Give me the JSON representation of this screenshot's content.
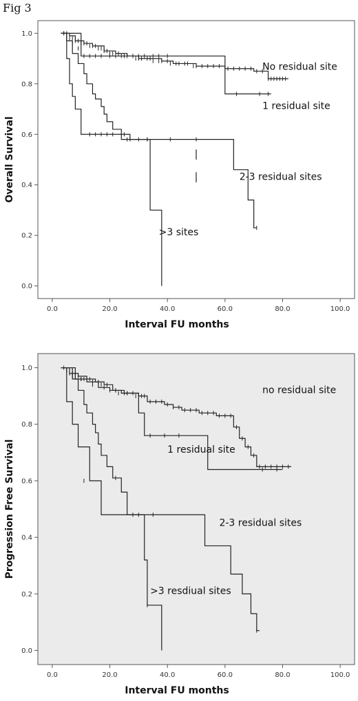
{
  "figure_label": "Fig 3",
  "chart_data": [
    {
      "type": "line",
      "chart_style": "kaplan-meier",
      "panel": "top",
      "background": "#ffffff",
      "xlabel": "Interval FU months",
      "ylabel": "Overall Survival",
      "xlim": [
        -5,
        105
      ],
      "ylim": [
        -0.05,
        1.05
      ],
      "x_ticks": [
        "0.0",
        "20.0",
        "40.0",
        "60.0",
        "80.0",
        "100.0"
      ],
      "y_ticks": [
        "0.0",
        "0.2",
        "0.4",
        "0.6",
        "0.8",
        "1.0"
      ],
      "grid": false,
      "series": [
        {
          "name": "No residual site",
          "label_at": [
            73,
            0.855
          ],
          "x": [
            3,
            6,
            8,
            11,
            14,
            18,
            22,
            26,
            30,
            34,
            38,
            42,
            46,
            50,
            55,
            60,
            65,
            70,
            75,
            82
          ],
          "y": [
            1.0,
            0.99,
            0.97,
            0.96,
            0.95,
            0.93,
            0.92,
            0.91,
            0.9,
            0.9,
            0.89,
            0.88,
            0.88,
            0.87,
            0.87,
            0.86,
            0.86,
            0.85,
            0.82,
            0.82
          ],
          "censored": [
            [
              4,
              1.0
            ],
            [
              5,
              1.0
            ],
            [
              6,
              0.99
            ],
            [
              7,
              0.98
            ],
            [
              8,
              0.97
            ],
            [
              9,
              0.97
            ],
            [
              10,
              0.96
            ],
            [
              11,
              0.96
            ],
            [
              12,
              0.96
            ],
            [
              13,
              0.95
            ],
            [
              14,
              0.95
            ],
            [
              15,
              0.95
            ],
            [
              16,
              0.94
            ],
            [
              17,
              0.94
            ],
            [
              18,
              0.93
            ],
            [
              19,
              0.93
            ],
            [
              20,
              0.92
            ],
            [
              21,
              0.92
            ],
            [
              23,
              0.92
            ],
            [
              24,
              0.91
            ],
            [
              26,
              0.91
            ],
            [
              28,
              0.91
            ],
            [
              29,
              0.9
            ],
            [
              30,
              0.9
            ],
            [
              31,
              0.9
            ],
            [
              33,
              0.9
            ],
            [
              34,
              0.9
            ],
            [
              35,
              0.89
            ],
            [
              37,
              0.89
            ],
            [
              38,
              0.89
            ],
            [
              40,
              0.89
            ],
            [
              41,
              0.88
            ],
            [
              43,
              0.88
            ],
            [
              44,
              0.88
            ],
            [
              46,
              0.88
            ],
            [
              47,
              0.88
            ],
            [
              49,
              0.87
            ],
            [
              50,
              0.87
            ],
            [
              52,
              0.87
            ],
            [
              54,
              0.87
            ],
            [
              56,
              0.87
            ],
            [
              58,
              0.87
            ],
            [
              61,
              0.86
            ],
            [
              63,
              0.86
            ],
            [
              65,
              0.86
            ],
            [
              67,
              0.86
            ],
            [
              69,
              0.86
            ],
            [
              71,
              0.85
            ],
            [
              73,
              0.85
            ],
            [
              75,
              0.82
            ],
            [
              76,
              0.82
            ],
            [
              77,
              0.82
            ],
            [
              78,
              0.82
            ],
            [
              79,
              0.82
            ],
            [
              80,
              0.82
            ],
            [
              81,
              0.82
            ]
          ]
        },
        {
          "name": "1 residual site",
          "label_at": [
            73,
            0.7
          ],
          "x": [
            3,
            10,
            60,
            76
          ],
          "y": [
            1.0,
            0.91,
            0.76,
            0.76
          ],
          "censored": [
            [
              4,
              1.0
            ],
            [
              5,
              0.99
            ],
            [
              6,
              0.98
            ],
            [
              7,
              0.96
            ],
            [
              9,
              0.94
            ],
            [
              11,
              0.91
            ],
            [
              13,
              0.91
            ],
            [
              15,
              0.91
            ],
            [
              17,
              0.91
            ],
            [
              20,
              0.91
            ],
            [
              22,
              0.91
            ],
            [
              25,
              0.91
            ],
            [
              28,
              0.91
            ],
            [
              30,
              0.91
            ],
            [
              32,
              0.91
            ],
            [
              35,
              0.91
            ],
            [
              37,
              0.91
            ],
            [
              40,
              0.91
            ],
            [
              64,
              0.76
            ],
            [
              72,
              0.76
            ],
            [
              75,
              0.76
            ]
          ]
        },
        {
          "name": "2-3 residual sites",
          "label_at": [
            65,
            0.42
          ],
          "x": [
            3,
            5,
            7,
            9,
            11,
            12,
            14,
            15,
            17,
            18,
            19,
            21,
            24,
            35,
            45,
            50,
            54,
            61,
            63,
            66,
            68,
            70,
            71
          ],
          "y": [
            1.0,
            0.97,
            0.92,
            0.88,
            0.84,
            0.8,
            0.76,
            0.74,
            0.71,
            0.68,
            0.65,
            0.62,
            0.58,
            0.58,
            0.58,
            0.58,
            0.58,
            0.58,
            0.46,
            0.46,
            0.34,
            0.23,
            0.23
          ],
          "censored": [
            [
              26,
              0.58
            ],
            [
              33,
              0.58
            ],
            [
              41,
              0.58
            ],
            [
              50,
              0.58
            ],
            [
              71,
              0.23
            ]
          ]
        },
        {
          "name": ">3 sites",
          "label_at": [
            37,
            0.2
          ],
          "x": [
            3,
            5,
            6,
            7,
            8,
            10,
            12,
            14,
            22,
            27,
            31,
            32,
            33,
            34,
            36,
            38,
            38
          ],
          "y": [
            1.0,
            0.9,
            0.8,
            0.75,
            0.7,
            0.6,
            0.6,
            0.6,
            0.6,
            0.58,
            0.58,
            0.58,
            0.58,
            0.3,
            0.3,
            0.3,
            0.0
          ],
          "censored": [
            [
              13,
              0.6
            ],
            [
              15,
              0.6
            ],
            [
              17,
              0.6
            ],
            [
              19,
              0.6
            ],
            [
              21,
              0.6
            ],
            [
              25,
              0.6
            ],
            [
              27,
              0.58
            ],
            [
              30,
              0.58
            ],
            [
              33,
              0.58
            ]
          ]
        }
      ],
      "annotation_ticks": [
        [
          50,
          0.54,
          0.5
        ],
        [
          50,
          0.45,
          0.41
        ]
      ]
    },
    {
      "type": "line",
      "chart_style": "kaplan-meier",
      "panel": "bottom",
      "background": "#ebebeb",
      "xlabel": "Interval FU months",
      "ylabel": "Progression Free Survival",
      "xlim": [
        -5,
        105
      ],
      "ylim": [
        -0.05,
        1.05
      ],
      "x_ticks": [
        "0.0",
        "20.0",
        "40.0",
        "60.0",
        "80.0",
        "100.0"
      ],
      "y_ticks": [
        "0.0",
        "0.2",
        "0.4",
        "0.6",
        "0.8",
        "1.0"
      ],
      "grid": false,
      "series": [
        {
          "name": "no residual site",
          "label_at": [
            73,
            0.91
          ],
          "x": [
            3,
            6,
            9,
            12,
            15,
            18,
            21,
            24,
            27,
            30,
            33,
            36,
            39,
            42,
            45,
            48,
            51,
            54,
            57,
            60,
            63,
            65,
            67,
            69,
            71,
            83
          ],
          "y": [
            1.0,
            0.98,
            0.97,
            0.96,
            0.95,
            0.94,
            0.92,
            0.91,
            0.91,
            0.9,
            0.88,
            0.88,
            0.87,
            0.86,
            0.85,
            0.85,
            0.84,
            0.84,
            0.83,
            0.83,
            0.79,
            0.75,
            0.72,
            0.69,
            0.65,
            0.65
          ],
          "censored": [
            [
              4,
              1.0
            ],
            [
              5,
              0.99
            ],
            [
              6,
              0.98
            ],
            [
              7,
              0.98
            ],
            [
              8,
              0.97
            ],
            [
              9,
              0.97
            ],
            [
              10,
              0.96
            ],
            [
              11,
              0.96
            ],
            [
              13,
              0.96
            ],
            [
              14,
              0.95
            ],
            [
              16,
              0.95
            ],
            [
              17,
              0.94
            ],
            [
              19,
              0.94
            ],
            [
              20,
              0.92
            ],
            [
              22,
              0.92
            ],
            [
              23,
              0.91
            ],
            [
              25,
              0.91
            ],
            [
              26,
              0.91
            ],
            [
              28,
              0.91
            ],
            [
              29,
              0.9
            ],
            [
              31,
              0.9
            ],
            [
              32,
              0.9
            ],
            [
              34,
              0.88
            ],
            [
              36,
              0.88
            ],
            [
              38,
              0.88
            ],
            [
              40,
              0.87
            ],
            [
              42,
              0.86
            ],
            [
              44,
              0.86
            ],
            [
              46,
              0.85
            ],
            [
              48,
              0.85
            ],
            [
              50,
              0.85
            ],
            [
              52,
              0.84
            ],
            [
              54,
              0.84
            ],
            [
              56,
              0.84
            ],
            [
              58,
              0.83
            ],
            [
              60,
              0.83
            ],
            [
              62,
              0.83
            ],
            [
              64,
              0.79
            ],
            [
              66,
              0.75
            ],
            [
              68,
              0.72
            ],
            [
              70,
              0.69
            ],
            [
              72,
              0.65
            ],
            [
              74,
              0.65
            ],
            [
              76,
              0.65
            ],
            [
              78,
              0.65
            ],
            [
              80,
              0.65
            ],
            [
              82,
              0.65
            ]
          ]
        },
        {
          "name": "1 residual site",
          "label_at": [
            40,
            0.7
          ],
          "x": [
            3,
            8,
            12,
            16,
            20,
            25,
            30,
            32,
            35,
            49,
            54,
            80
          ],
          "y": [
            1.0,
            0.96,
            0.95,
            0.93,
            0.92,
            0.91,
            0.84,
            0.76,
            0.76,
            0.76,
            0.64,
            0.64
          ],
          "censored": [
            [
              5,
              0.99
            ],
            [
              7,
              0.97
            ],
            [
              10,
              0.96
            ],
            [
              14,
              0.94
            ],
            [
              18,
              0.93
            ],
            [
              22,
              0.92
            ],
            [
              26,
              0.91
            ],
            [
              34,
              0.76
            ],
            [
              39,
              0.76
            ],
            [
              44,
              0.76
            ],
            [
              73,
              0.64
            ],
            [
              78,
              0.64
            ]
          ]
        },
        {
          "name": "2-3 residual sites",
          "label_at": [
            58,
            0.44
          ],
          "x": [
            3,
            7,
            9,
            11,
            12,
            14,
            15,
            16,
            17,
            19,
            21,
            24,
            26,
            30,
            40,
            46,
            53,
            62,
            66,
            69,
            71,
            72
          ],
          "y": [
            1.0,
            0.96,
            0.92,
            0.87,
            0.84,
            0.8,
            0.77,
            0.73,
            0.69,
            0.65,
            0.61,
            0.56,
            0.48,
            0.48,
            0.48,
            0.48,
            0.37,
            0.27,
            0.2,
            0.13,
            0.07,
            0.07
          ],
          "censored": [
            [
              22,
              0.61
            ],
            [
              28,
              0.48
            ],
            [
              30,
              0.48
            ],
            [
              35,
              0.48
            ],
            [
              71,
              0.07
            ]
          ]
        },
        {
          "name": ">3 resdiual sites",
          "label_at": [
            34,
            0.2
          ],
          "x": [
            3,
            5,
            7,
            9,
            13,
            17,
            28,
            32,
            33,
            37,
            38,
            38
          ],
          "y": [
            1.0,
            0.88,
            0.8,
            0.72,
            0.6,
            0.48,
            0.48,
            0.32,
            0.16,
            0.16,
            0.16,
            0.0
          ],
          "censored": [
            [
              11,
              0.6
            ],
            [
              33,
              0.16
            ]
          ]
        }
      ]
    }
  ]
}
